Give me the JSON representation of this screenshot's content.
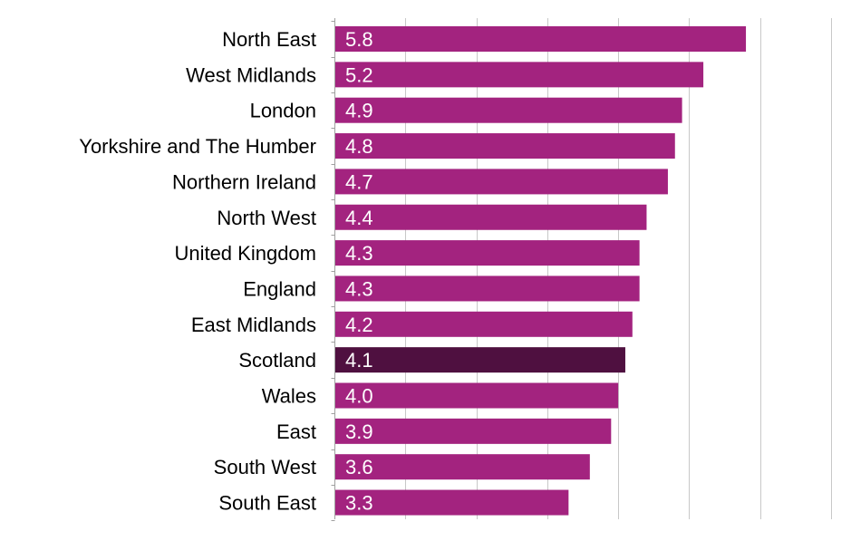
{
  "chart_data": {
    "type": "bar",
    "orientation": "horizontal",
    "categories": [
      "North East",
      "West Midlands",
      "London",
      "Yorkshire and The Humber",
      "Northern Ireland",
      "North West",
      "United Kingdom",
      "England",
      "East Midlands",
      "Scotland",
      "Wales",
      "East",
      "South West",
      "South East"
    ],
    "values": [
      5.8,
      5.2,
      4.9,
      4.8,
      4.7,
      4.4,
      4.3,
      4.3,
      4.2,
      4.1,
      4.0,
      3.9,
      3.6,
      3.3
    ],
    "value_labels": [
      "5.8",
      "5.2",
      "4.9",
      "4.8",
      "4.7",
      "4.4",
      "4.3",
      "4.3",
      "4.2",
      "4.1",
      "4.0",
      "3.9",
      "3.6",
      "3.3"
    ],
    "highlight": "Scotland",
    "xlim": [
      0,
      7
    ],
    "grid": true,
    "title": "",
    "xlabel": "",
    "ylabel": ""
  },
  "colors": {
    "bar": "#A3237F",
    "highlight_bar": "#4F1040",
    "gridline": "#C8C8C8",
    "axis": "#A0A0A0",
    "category_text": "#000000",
    "value_text": "#FFFFFF"
  }
}
